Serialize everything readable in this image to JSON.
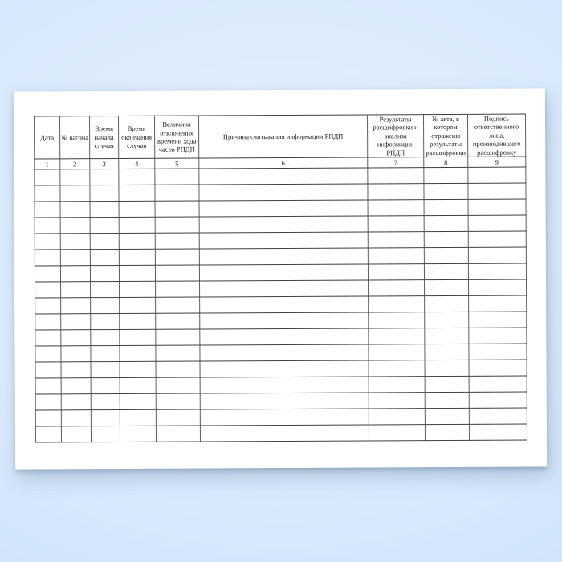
{
  "colors": {
    "background_blue": "#d9eafc",
    "page_white": "#ffffff",
    "grid_line_horizontal": "#3f3f3f",
    "grid_line_vertical": "#5d5d5d",
    "text": "#1b1b1b"
  },
  "table": {
    "columns": [
      {
        "number": "1",
        "label": "Дата"
      },
      {
        "number": "2",
        "label": "№ вагона"
      },
      {
        "number": "3",
        "label": "Время начала случая"
      },
      {
        "number": "4",
        "label": "Время окончания случая"
      },
      {
        "number": "5",
        "label": "Величина отклонения времени хода часов РПДП"
      },
      {
        "number": "6",
        "label": "Причина считывания информации РПДП"
      },
      {
        "number": "7",
        "label": "Результаты расшифровки и анализа информации РПДП"
      },
      {
        "number": "8",
        "label": "№ акта, в котором отражены результаты расшифровки"
      },
      {
        "number": "9",
        "label": "Подпись ответственного лица, производившего расшифровку"
      }
    ],
    "empty_row_count": 17,
    "cells": []
  }
}
